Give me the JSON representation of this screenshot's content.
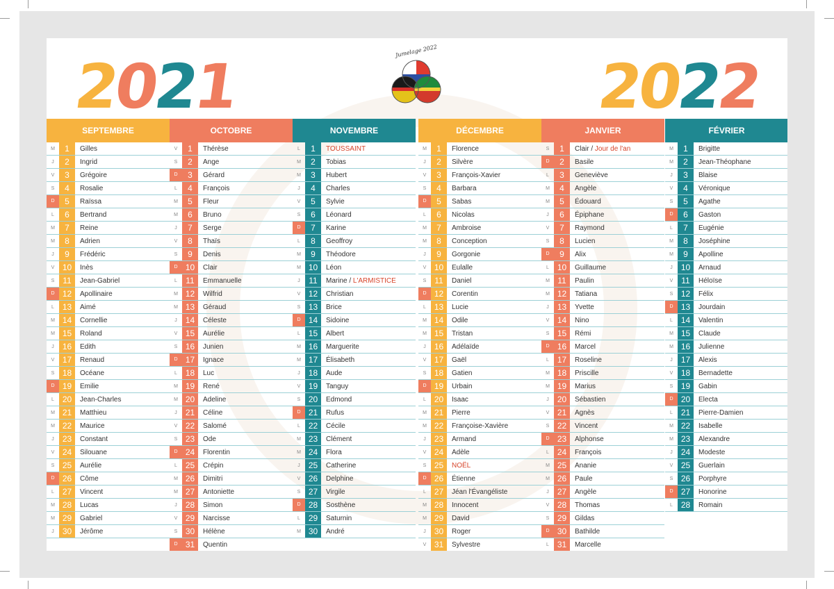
{
  "years": {
    "left": "2021",
    "right": "2022"
  },
  "logo": {
    "caption": "Jumelage 2022"
  },
  "colors": {
    "yellow": "#f7b33f",
    "coral": "#ef7d5f",
    "teal": "#1f8891"
  },
  "months": [
    {
      "name": "SEPTEMBRE",
      "color": "#f7b33f",
      "days": [
        {
          "wd": "M",
          "n": "1",
          "name": "Gilles"
        },
        {
          "wd": "J",
          "n": "2",
          "name": "Ingrid"
        },
        {
          "wd": "V",
          "n": "3",
          "name": "Grégoire"
        },
        {
          "wd": "S",
          "n": "4",
          "name": "Rosalie"
        },
        {
          "wd": "D",
          "n": "5",
          "name": "Raïssa",
          "sun": true
        },
        {
          "wd": "L",
          "n": "6",
          "name": "Bertrand"
        },
        {
          "wd": "M",
          "n": "7",
          "name": "Reine"
        },
        {
          "wd": "M",
          "n": "8",
          "name": "Adrien"
        },
        {
          "wd": "J",
          "n": "9",
          "name": "Frédéric"
        },
        {
          "wd": "V",
          "n": "10",
          "name": "Inès"
        },
        {
          "wd": "S",
          "n": "11",
          "name": "Jean-Gabriel"
        },
        {
          "wd": "D",
          "n": "12",
          "name": "Apollinaire",
          "sun": true
        },
        {
          "wd": "L",
          "n": "13",
          "name": "Aimé"
        },
        {
          "wd": "M",
          "n": "14",
          "name": "Cornellie"
        },
        {
          "wd": "M",
          "n": "15",
          "name": "Roland"
        },
        {
          "wd": "J",
          "n": "16",
          "name": "Edith"
        },
        {
          "wd": "V",
          "n": "17",
          "name": "Renaud"
        },
        {
          "wd": "S",
          "n": "18",
          "name": "Océane"
        },
        {
          "wd": "D",
          "n": "19",
          "name": "Emilie",
          "sun": true
        },
        {
          "wd": "L",
          "n": "20",
          "name": "Jean-Charles"
        },
        {
          "wd": "M",
          "n": "21",
          "name": "Matthieu"
        },
        {
          "wd": "M",
          "n": "22",
          "name": "Maurice"
        },
        {
          "wd": "J",
          "n": "23",
          "name": "Constant"
        },
        {
          "wd": "V",
          "n": "24",
          "name": "Silouane"
        },
        {
          "wd": "S",
          "n": "25",
          "name": "Aurélie"
        },
        {
          "wd": "D",
          "n": "26",
          "name": "Côme",
          "sun": true
        },
        {
          "wd": "L",
          "n": "27",
          "name": "Vincent"
        },
        {
          "wd": "M",
          "n": "28",
          "name": "Lucas"
        },
        {
          "wd": "M",
          "n": "29",
          "name": "Gabriel"
        },
        {
          "wd": "J",
          "n": "30",
          "name": "Jérôme"
        }
      ]
    },
    {
      "name": "OCTOBRE",
      "color": "#ef7d5f",
      "days": [
        {
          "wd": "V",
          "n": "1",
          "name": "Thérèse"
        },
        {
          "wd": "S",
          "n": "2",
          "name": "Ange"
        },
        {
          "wd": "D",
          "n": "3",
          "name": "Gérard",
          "sun": true
        },
        {
          "wd": "L",
          "n": "4",
          "name": "François"
        },
        {
          "wd": "M",
          "n": "5",
          "name": "Fleur"
        },
        {
          "wd": "M",
          "n": "6",
          "name": "Bruno"
        },
        {
          "wd": "J",
          "n": "7",
          "name": "Serge"
        },
        {
          "wd": "V",
          "n": "8",
          "name": "Thaïs"
        },
        {
          "wd": "S",
          "n": "9",
          "name": "Denis"
        },
        {
          "wd": "D",
          "n": "10",
          "name": "Clair",
          "sun": true
        },
        {
          "wd": "L",
          "n": "11",
          "name": "Emmanuelle"
        },
        {
          "wd": "M",
          "n": "12",
          "name": "Wilfrid"
        },
        {
          "wd": "M",
          "n": "13",
          "name": "Géraud"
        },
        {
          "wd": "J",
          "n": "14",
          "name": "Céleste"
        },
        {
          "wd": "V",
          "n": "15",
          "name": "Aurélie"
        },
        {
          "wd": "S",
          "n": "16",
          "name": "Junien"
        },
        {
          "wd": "D",
          "n": "17",
          "name": "Ignace",
          "sun": true
        },
        {
          "wd": "L",
          "n": "18",
          "name": "Luc"
        },
        {
          "wd": "M",
          "n": "19",
          "name": "René"
        },
        {
          "wd": "M",
          "n": "20",
          "name": "Adeline"
        },
        {
          "wd": "J",
          "n": "21",
          "name": "Céline"
        },
        {
          "wd": "V",
          "n": "22",
          "name": "Salomé"
        },
        {
          "wd": "S",
          "n": "23",
          "name": "Ode"
        },
        {
          "wd": "D",
          "n": "24",
          "name": "Florentin",
          "sun": true
        },
        {
          "wd": "L",
          "n": "25",
          "name": "Crépin"
        },
        {
          "wd": "M",
          "n": "26",
          "name": "Dimitri"
        },
        {
          "wd": "M",
          "n": "27",
          "name": "Antoniette"
        },
        {
          "wd": "J",
          "n": "28",
          "name": "Simon"
        },
        {
          "wd": "V",
          "n": "29",
          "name": "Narcisse"
        },
        {
          "wd": "S",
          "n": "30",
          "name": "Hélène"
        },
        {
          "wd": "D",
          "n": "31",
          "name": "Quentin",
          "sun": true
        }
      ]
    },
    {
      "name": "NOVEMBRE",
      "color": "#1f8891",
      "days": [
        {
          "wd": "L",
          "n": "1",
          "name": "",
          "holiday": "TOUSSAINT"
        },
        {
          "wd": "M",
          "n": "2",
          "name": "Tobias"
        },
        {
          "wd": "M",
          "n": "3",
          "name": "Hubert"
        },
        {
          "wd": "J",
          "n": "4",
          "name": "Charles"
        },
        {
          "wd": "V",
          "n": "5",
          "name": "Sylvie"
        },
        {
          "wd": "S",
          "n": "6",
          "name": "Léonard"
        },
        {
          "wd": "D",
          "n": "7",
          "name": "Karine",
          "sun": true
        },
        {
          "wd": "L",
          "n": "8",
          "name": "Geoffroy"
        },
        {
          "wd": "M",
          "n": "9",
          "name": "Théodore"
        },
        {
          "wd": "M",
          "n": "10",
          "name": "Léon"
        },
        {
          "wd": "J",
          "n": "11",
          "name": "Marine / ",
          "holiday": "L'ARMISTICE"
        },
        {
          "wd": "V",
          "n": "12",
          "name": "Christian"
        },
        {
          "wd": "S",
          "n": "13",
          "name": "Brice"
        },
        {
          "wd": "D",
          "n": "14",
          "name": "Sidoine",
          "sun": true
        },
        {
          "wd": "L",
          "n": "15",
          "name": "Albert"
        },
        {
          "wd": "M",
          "n": "16",
          "name": "Marguerite"
        },
        {
          "wd": "M",
          "n": "17",
          "name": "Élisabeth"
        },
        {
          "wd": "J",
          "n": "18",
          "name": "Aude"
        },
        {
          "wd": "V",
          "n": "19",
          "name": "Tanguy"
        },
        {
          "wd": "S",
          "n": "20",
          "name": "Edmond"
        },
        {
          "wd": "D",
          "n": "21",
          "name": "Rufus",
          "sun": true
        },
        {
          "wd": "L",
          "n": "22",
          "name": "Cécile"
        },
        {
          "wd": "M",
          "n": "23",
          "name": "Clément"
        },
        {
          "wd": "M",
          "n": "24",
          "name": "Flora"
        },
        {
          "wd": "J",
          "n": "25",
          "name": "Catherine"
        },
        {
          "wd": "V",
          "n": "26",
          "name": "Delphine"
        },
        {
          "wd": "S",
          "n": "27",
          "name": "Virgile"
        },
        {
          "wd": "D",
          "n": "28",
          "name": "Sosthène",
          "sun": true
        },
        {
          "wd": "L",
          "n": "29",
          "name": "Saturnin"
        },
        {
          "wd": "M",
          "n": "30",
          "name": "André"
        }
      ]
    },
    {
      "name": "DÉCEMBRE",
      "color": "#f7b33f",
      "days": [
        {
          "wd": "M",
          "n": "1",
          "name": "Florence"
        },
        {
          "wd": "J",
          "n": "2",
          "name": "Silvère"
        },
        {
          "wd": "V",
          "n": "3",
          "name": "François-Xavier"
        },
        {
          "wd": "S",
          "n": "4",
          "name": "Barbara"
        },
        {
          "wd": "D",
          "n": "5",
          "name": "Sabas",
          "sun": true
        },
        {
          "wd": "L",
          "n": "6",
          "name": "Nicolas"
        },
        {
          "wd": "M",
          "n": "7",
          "name": "Ambroise"
        },
        {
          "wd": "M",
          "n": "8",
          "name": "Conception"
        },
        {
          "wd": "J",
          "n": "9",
          "name": "Gorgonie"
        },
        {
          "wd": "V",
          "n": "10",
          "name": "Eulalle"
        },
        {
          "wd": "S",
          "n": "11",
          "name": "Daniel"
        },
        {
          "wd": "D",
          "n": "12",
          "name": "Corentin",
          "sun": true
        },
        {
          "wd": "L",
          "n": "13",
          "name": "Lucie"
        },
        {
          "wd": "M",
          "n": "14",
          "name": "Odile"
        },
        {
          "wd": "M",
          "n": "15",
          "name": "Tristan"
        },
        {
          "wd": "J",
          "n": "16",
          "name": "Adélaïde"
        },
        {
          "wd": "V",
          "n": "17",
          "name": "Gaël"
        },
        {
          "wd": "S",
          "n": "18",
          "name": "Gatien"
        },
        {
          "wd": "D",
          "n": "19",
          "name": "Urbain",
          "sun": true
        },
        {
          "wd": "L",
          "n": "20",
          "name": "Isaac"
        },
        {
          "wd": "M",
          "n": "21",
          "name": "Pierre"
        },
        {
          "wd": "M",
          "n": "22",
          "name": "Françoise-Xavière"
        },
        {
          "wd": "J",
          "n": "23",
          "name": "Armand"
        },
        {
          "wd": "V",
          "n": "24",
          "name": "Adèle"
        },
        {
          "wd": "S",
          "n": "25",
          "name": "",
          "holiday": "NOËL"
        },
        {
          "wd": "D",
          "n": "26",
          "name": "Étienne",
          "sun": true
        },
        {
          "wd": "L",
          "n": "27",
          "name": "Jéan l'Évangéliste"
        },
        {
          "wd": "M",
          "n": "28",
          "name": "Innocent"
        },
        {
          "wd": "M",
          "n": "29",
          "name": "David"
        },
        {
          "wd": "J",
          "n": "30",
          "name": "Roger"
        },
        {
          "wd": "V",
          "n": "31",
          "name": "Sylvestre"
        }
      ]
    },
    {
      "name": "JANVIER",
      "color": "#ef7d5f",
      "days": [
        {
          "wd": "S",
          "n": "1",
          "name": "Clair / ",
          "holiday": "Jour de l'an"
        },
        {
          "wd": "D",
          "n": "2",
          "name": "Basile",
          "sun": true
        },
        {
          "wd": "L",
          "n": "3",
          "name": "Geneviève"
        },
        {
          "wd": "M",
          "n": "4",
          "name": "Angèle"
        },
        {
          "wd": "M",
          "n": "5",
          "name": "Édouard"
        },
        {
          "wd": "J",
          "n": "6",
          "name": "Épiphane"
        },
        {
          "wd": "V",
          "n": "7",
          "name": "Raymond"
        },
        {
          "wd": "S",
          "n": "8",
          "name": "Lucien"
        },
        {
          "wd": "D",
          "n": "9",
          "name": "Alix",
          "sun": true
        },
        {
          "wd": "L",
          "n": "10",
          "name": "Guillaume"
        },
        {
          "wd": "M",
          "n": "11",
          "name": "Paulin"
        },
        {
          "wd": "M",
          "n": "12",
          "name": "Tatiana"
        },
        {
          "wd": "J",
          "n": "13",
          "name": "Yvette"
        },
        {
          "wd": "V",
          "n": "14",
          "name": "Nino"
        },
        {
          "wd": "S",
          "n": "15",
          "name": "Rémi"
        },
        {
          "wd": "D",
          "n": "16",
          "name": "Marcel",
          "sun": true
        },
        {
          "wd": "L",
          "n": "17",
          "name": "Roseline"
        },
        {
          "wd": "M",
          "n": "18",
          "name": "Priscille"
        },
        {
          "wd": "M",
          "n": "19",
          "name": "Marius"
        },
        {
          "wd": "J",
          "n": "20",
          "name": "Sébastien"
        },
        {
          "wd": "V",
          "n": "21",
          "name": "Agnès"
        },
        {
          "wd": "S",
          "n": "22",
          "name": "Vincent"
        },
        {
          "wd": "D",
          "n": "23",
          "name": "Alphonse",
          "sun": true
        },
        {
          "wd": "L",
          "n": "24",
          "name": "François"
        },
        {
          "wd": "M",
          "n": "25",
          "name": "Ananie"
        },
        {
          "wd": "M",
          "n": "26",
          "name": "Paule"
        },
        {
          "wd": "J",
          "n": "27",
          "name": "Angèle"
        },
        {
          "wd": "V",
          "n": "28",
          "name": "Thomas"
        },
        {
          "wd": "S",
          "n": "29",
          "name": "Gildas"
        },
        {
          "wd": "D",
          "n": "30",
          "name": "Bathilde",
          "sun": true
        },
        {
          "wd": "L",
          "n": "31",
          "name": "Marcelle"
        }
      ]
    },
    {
      "name": "FÉVRIER",
      "color": "#1f8891",
      "days": [
        {
          "wd": "M",
          "n": "1",
          "name": "Brigitte"
        },
        {
          "wd": "M",
          "n": "2",
          "name": "Jean-Théophane"
        },
        {
          "wd": "J",
          "n": "3",
          "name": "Blaise"
        },
        {
          "wd": "V",
          "n": "4",
          "name": "Véronique"
        },
        {
          "wd": "S",
          "n": "5",
          "name": "Agathe"
        },
        {
          "wd": "D",
          "n": "6",
          "name": "Gaston",
          "sun": true
        },
        {
          "wd": "L",
          "n": "7",
          "name": "Eugénie"
        },
        {
          "wd": "M",
          "n": "8",
          "name": "Joséphine"
        },
        {
          "wd": "M",
          "n": "9",
          "name": "Apolline"
        },
        {
          "wd": "J",
          "n": "10",
          "name": "Arnaud"
        },
        {
          "wd": "V",
          "n": "11",
          "name": "Héloïse"
        },
        {
          "wd": "S",
          "n": "12",
          "name": "Félix"
        },
        {
          "wd": "D",
          "n": "13",
          "name": "Jourdain",
          "sun": true
        },
        {
          "wd": "L",
          "n": "14",
          "name": "Valentin"
        },
        {
          "wd": "M",
          "n": "15",
          "name": "Claude"
        },
        {
          "wd": "M",
          "n": "16",
          "name": "Julienne"
        },
        {
          "wd": "J",
          "n": "17",
          "name": "Alexis"
        },
        {
          "wd": "V",
          "n": "18",
          "name": "Bernadette"
        },
        {
          "wd": "S",
          "n": "19",
          "name": "Gabin"
        },
        {
          "wd": "D",
          "n": "20",
          "name": "Electa",
          "sun": true
        },
        {
          "wd": "L",
          "n": "21",
          "name": "Pierre-Damien"
        },
        {
          "wd": "M",
          "n": "22",
          "name": "Isabelle"
        },
        {
          "wd": "M",
          "n": "23",
          "name": "Alexandre"
        },
        {
          "wd": "J",
          "n": "24",
          "name": "Modeste"
        },
        {
          "wd": "V",
          "n": "25",
          "name": "Guerlain"
        },
        {
          "wd": "S",
          "n": "26",
          "name": "Porphyre"
        },
        {
          "wd": "D",
          "n": "27",
          "name": "Honorine",
          "sun": true
        },
        {
          "wd": "L",
          "n": "28",
          "name": "Romain"
        }
      ]
    }
  ]
}
